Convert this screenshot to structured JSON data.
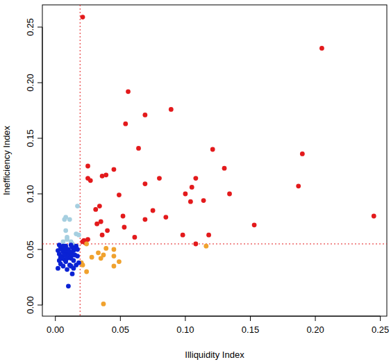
{
  "chart_data": {
    "type": "scatter",
    "x_label": "Illiquidity Index",
    "y_label": "Inefficiency Index",
    "xlim": [
      -0.01,
      0.255
    ],
    "ylim": [
      -0.01,
      0.27
    ],
    "xticks": [
      {
        "value": 0,
        "label": "0.00"
      },
      {
        "value": 0.05,
        "label": "0.05"
      },
      {
        "value": 0.1,
        "label": "0.10"
      },
      {
        "value": 0.15,
        "label": "0.15"
      },
      {
        "value": 0.2,
        "label": "0.20"
      },
      {
        "value": 0.25,
        "label": "0.25"
      }
    ],
    "yticks": [
      {
        "value": 0,
        "label": "0.00"
      },
      {
        "value": 0.05,
        "label": "0.05"
      },
      {
        "value": 0.1,
        "label": "0.10"
      },
      {
        "value": 0.15,
        "label": "0.15"
      },
      {
        "value": 0.2,
        "label": "0.20"
      },
      {
        "value": 0.25,
        "label": "0.25"
      }
    ],
    "reference_lines": {
      "x": 0.019,
      "y": 0.055,
      "color": "#e31a1c",
      "line_style": "dotted"
    },
    "grid": false,
    "marker": "circle",
    "series": [
      {
        "color": "#e31a1c",
        "x": [
          0.021,
          0.205,
          0.056,
          0.089,
          0.069,
          0.054,
          0.064,
          0.121,
          0.19,
          0.025,
          0.13,
          0.045,
          0.039,
          0.036,
          0.025,
          0.027,
          0.08,
          0.108,
          0.069,
          0.105,
          0.187,
          0.1,
          0.134,
          0.049,
          0.114,
          0.104,
          0.034,
          0.031,
          0.075,
          0.245,
          0.052,
          0.085,
          0.069,
          0.035,
          0.032,
          0.053,
          0.153,
          0.04,
          0.036,
          0.098,
          0.118,
          0.061,
          0.025,
          0.022,
          0.023,
          0.108,
          0.021
        ],
        "values": [
          0.259,
          0.231,
          0.192,
          0.176,
          0.171,
          0.163,
          0.141,
          0.14,
          0.136,
          0.125,
          0.123,
          0.122,
          0.117,
          0.116,
          0.114,
          0.112,
          0.114,
          0.114,
          0.109,
          0.106,
          0.107,
          0.1,
          0.1,
          0.099,
          0.094,
          0.093,
          0.089,
          0.086,
          0.085,
          0.08,
          0.08,
          0.079,
          0.077,
          0.075,
          0.073,
          0.07,
          0.072,
          0.067,
          0.063,
          0.063,
          0.063,
          0.061,
          0.059,
          0.058,
          0.056,
          0.055,
          0.057
        ]
      },
      {
        "color": "#f0a22e",
        "x": [
          0.116,
          0.024,
          0.039,
          0.045,
          0.033,
          0.037,
          0.028,
          0.035,
          0.045,
          0.021,
          0.049,
          0.045,
          0.024,
          0.037,
          0.02
        ],
        "values": [
          0.053,
          0.055,
          0.051,
          0.05,
          0.047,
          0.045,
          0.043,
          0.042,
          0.044,
          0.036,
          0.039,
          0.035,
          0.03,
          0.001,
          0.038
        ]
      },
      {
        "color": "#a6cfe0",
        "x": [
          0.008,
          0.007,
          0.011,
          0.017,
          0.008,
          0.016,
          0.009,
          0.012,
          0.013,
          0.009,
          0.018,
          0.006
        ],
        "values": [
          0.079,
          0.077,
          0.077,
          0.089,
          0.067,
          0.064,
          0.061,
          0.057,
          0.055,
          0.059,
          0.063,
          0.057
        ]
      },
      {
        "color": "#0a22d4",
        "x": [
          0.002,
          0.003,
          0.004,
          0.005,
          0.006,
          0.007,
          0.008,
          0.009,
          0.01,
          0.011,
          0.012,
          0.013,
          0.014,
          0.015,
          0.016,
          0.017,
          0.018,
          0.003,
          0.004,
          0.005,
          0.006,
          0.007,
          0.008,
          0.009,
          0.01,
          0.011,
          0.012,
          0.013,
          0.014,
          0.015,
          0.002,
          0.004,
          0.006,
          0.008,
          0.01,
          0.012,
          0.014,
          0.016,
          0.005,
          0.007,
          0.009,
          0.011,
          0.013,
          0.003,
          0.017,
          0.012
        ],
        "values": [
          0.049,
          0.046,
          0.052,
          0.044,
          0.048,
          0.041,
          0.053,
          0.046,
          0.05,
          0.043,
          0.047,
          0.052,
          0.049,
          0.045,
          0.053,
          0.044,
          0.038,
          0.04,
          0.043,
          0.05,
          0.035,
          0.045,
          0.039,
          0.032,
          0.017,
          0.036,
          0.042,
          0.028,
          0.033,
          0.051,
          0.033,
          0.037,
          0.053,
          0.049,
          0.044,
          0.054,
          0.04,
          0.036,
          0.042,
          0.051,
          0.042,
          0.048,
          0.045,
          0.054,
          0.05,
          0.035
        ]
      }
    ]
  }
}
